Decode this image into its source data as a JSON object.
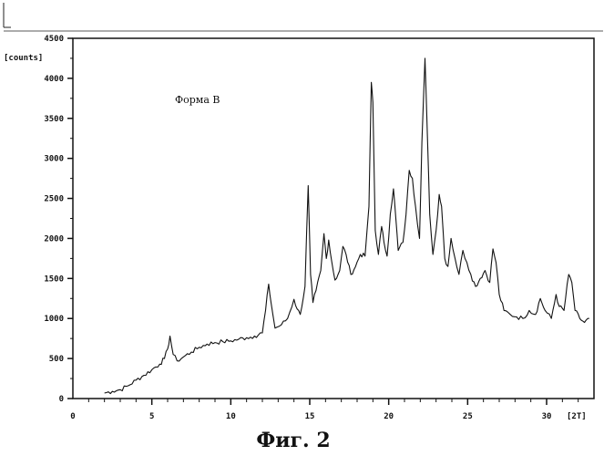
{
  "chart_data": {
    "type": "line",
    "title": "",
    "xlabel": "",
    "ylabel": "[counts]",
    "x_unit_label": "[2T]",
    "annotation": "Форма B",
    "caption": "Фиг. 2",
    "xlim": [
      0,
      33
    ],
    "ylim": [
      0,
      4500
    ],
    "x_ticks": [
      0,
      5,
      10,
      15,
      20,
      25,
      30
    ],
    "y_ticks": [
      0,
      500,
      1000,
      1500,
      2000,
      2500,
      3000,
      3500,
      4000,
      4500
    ],
    "grid": false,
    "line_color": "#111111",
    "series": [
      {
        "x": [
          2.0,
          2.5,
          3.0,
          3.5,
          4.0,
          4.5,
          5.0,
          5.5,
          5.8,
          6.0,
          6.15,
          6.35,
          6.6,
          7.0,
          7.5,
          8.0,
          8.5,
          9.0,
          9.5,
          10.0,
          10.5,
          11.0,
          11.5,
          12.0,
          12.2,
          12.4,
          12.55,
          12.8,
          13.2,
          13.6,
          14.0,
          14.2,
          14.4,
          14.7,
          14.9,
          15.05,
          15.2,
          15.4,
          15.7,
          15.9,
          16.05,
          16.2,
          16.4,
          16.6,
          16.9,
          17.1,
          17.3,
          17.6,
          17.9,
          18.2,
          18.5,
          18.75,
          18.9,
          19.0,
          19.15,
          19.35,
          19.55,
          19.7,
          19.9,
          20.1,
          20.3,
          20.45,
          20.6,
          20.9,
          21.1,
          21.3,
          21.5,
          21.7,
          21.95,
          22.1,
          22.3,
          22.45,
          22.6,
          22.8,
          23.0,
          23.2,
          23.35,
          23.55,
          23.75,
          23.95,
          24.2,
          24.45,
          24.7,
          24.95,
          25.2,
          25.5,
          25.8,
          26.1,
          26.4,
          26.6,
          26.8,
          27.0,
          27.3,
          27.7,
          28.1,
          28.5,
          28.9,
          29.3,
          29.6,
          29.9,
          30.3,
          30.6,
          30.8,
          31.1,
          31.4,
          31.6,
          31.8,
          32.1,
          32.4,
          32.7
        ],
        "y": [
          70,
          90,
          110,
          160,
          230,
          290,
          360,
          430,
          500,
          620,
          780,
          550,
          470,
          520,
          580,
          640,
          680,
          700,
          710,
          720,
          740,
          760,
          780,
          820,
          1100,
          1430,
          1200,
          880,
          920,
          1000,
          1240,
          1120,
          1050,
          1400,
          2660,
          1550,
          1200,
          1350,
          1600,
          2060,
          1750,
          1980,
          1700,
          1480,
          1600,
          1900,
          1800,
          1550,
          1650,
          1800,
          1780,
          2400,
          3950,
          3700,
          2100,
          1800,
          2150,
          1950,
          1780,
          2300,
          2620,
          2250,
          1850,
          1950,
          2300,
          2850,
          2750,
          2400,
          2000,
          3200,
          4250,
          3300,
          2300,
          1800,
          2100,
          2550,
          2400,
          1750,
          1650,
          2000,
          1750,
          1550,
          1850,
          1700,
          1550,
          1400,
          1500,
          1600,
          1450,
          1870,
          1700,
          1300,
          1100,
          1050,
          1020,
          1000,
          1100,
          1050,
          1250,
          1100,
          1000,
          1300,
          1150,
          1100,
          1550,
          1450,
          1100,
          1000,
          950,
          1000
        ]
      }
    ]
  }
}
